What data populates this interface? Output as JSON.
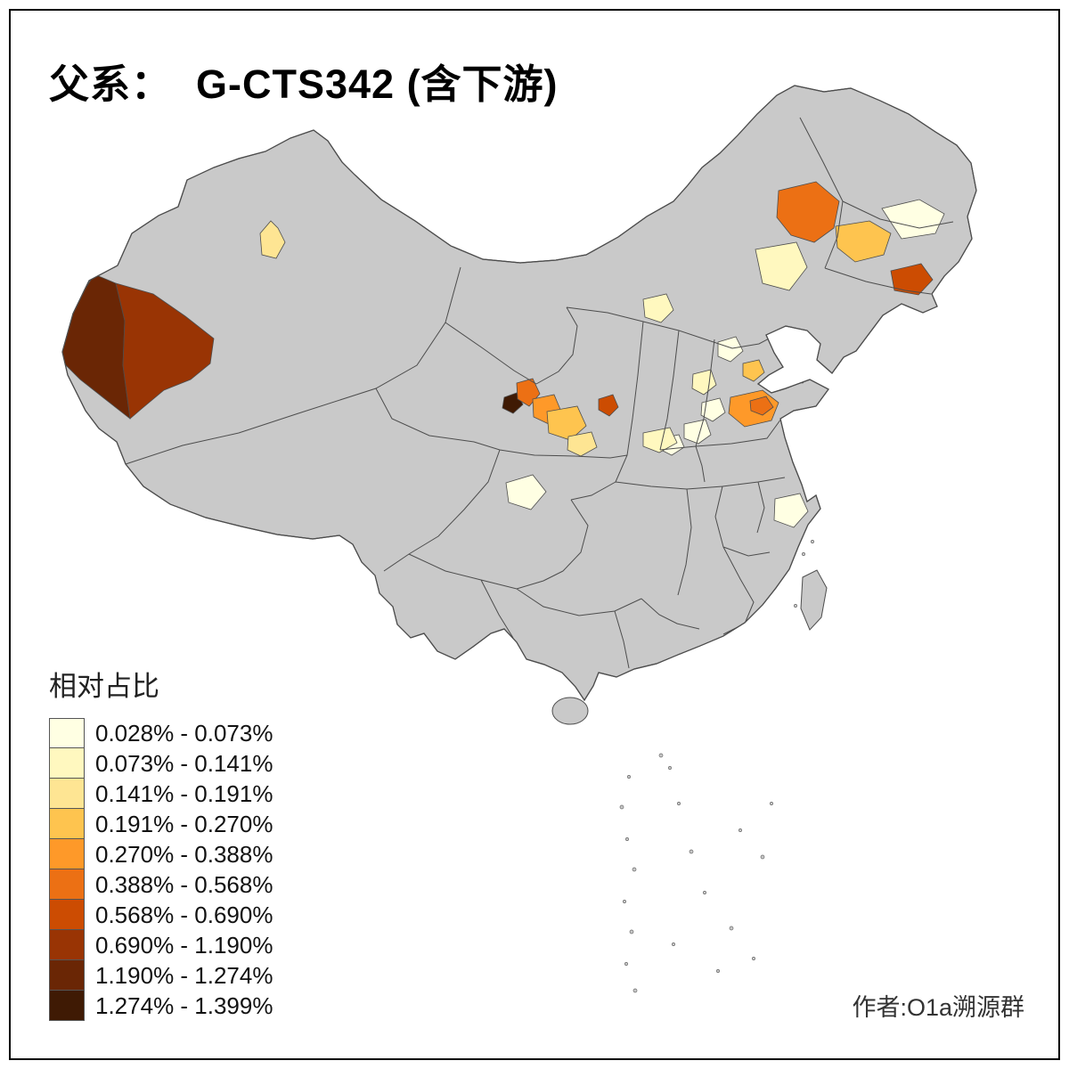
{
  "title": "父系：  G-CTS342 (含下游)",
  "author": "作者:O1a溯源群",
  "legend": {
    "title": "相对占比",
    "classes": [
      {
        "label": "0.028% - 0.073%",
        "color": "#FFFFE3"
      },
      {
        "label": "0.073% - 0.141%",
        "color": "#FFF8BF"
      },
      {
        "label": "0.141% - 0.191%",
        "color": "#FEE593"
      },
      {
        "label": "0.191% - 0.270%",
        "color": "#FEC44F"
      },
      {
        "label": "0.270% - 0.388%",
        "color": "#FE9929"
      },
      {
        "label": "0.388% - 0.568%",
        "color": "#EC7014"
      },
      {
        "label": "0.568% - 0.690%",
        "color": "#CC4C02"
      },
      {
        "label": "0.690% - 1.190%",
        "color": "#993404"
      },
      {
        "label": "1.190% - 1.274%",
        "color": "#6A2605"
      },
      {
        "label": "1.274% - 1.399%",
        "color": "#3F1A04"
      }
    ]
  },
  "map": {
    "base_fill": "#C9C9C9",
    "border_color": "#4D4D4D",
    "regions": [
      {
        "id": "kashgar-west",
        "class": 9
      },
      {
        "id": "kashgar-east",
        "class": 8
      },
      {
        "id": "xinjiang-small",
        "class": 3
      },
      {
        "id": "inner-mongolia-east",
        "class": 6
      },
      {
        "id": "tongliao",
        "class": 4
      },
      {
        "id": "harbin",
        "class": 1
      },
      {
        "id": "jilin",
        "class": 7
      },
      {
        "id": "inner-mongolia-west",
        "class": 2
      },
      {
        "id": "ulanqab",
        "class": 2
      },
      {
        "id": "hebei-north",
        "class": 1
      },
      {
        "id": "beijing",
        "class": 4
      },
      {
        "id": "hebei-mid",
        "class": 2
      },
      {
        "id": "shijiazhuang",
        "class": 1
      },
      {
        "id": "shandong-west",
        "class": 5
      },
      {
        "id": "shandong-core",
        "class": 6
      },
      {
        "id": "shandong-peninsula",
        "class": 2
      },
      {
        "id": "henan-north",
        "class": 1
      },
      {
        "id": "henan-west",
        "class": 1
      },
      {
        "id": "gansu-darkest",
        "class": 10
      },
      {
        "id": "gansu-orange",
        "class": 6
      },
      {
        "id": "gansu-mid",
        "class": 5
      },
      {
        "id": "gansu-light",
        "class": 4
      },
      {
        "id": "gansu-south",
        "class": 3
      },
      {
        "id": "ningxia",
        "class": 7
      },
      {
        "id": "shaanxi-mid",
        "class": 2
      },
      {
        "id": "chengdu",
        "class": 1
      },
      {
        "id": "jiangsu",
        "class": 1
      }
    ]
  }
}
